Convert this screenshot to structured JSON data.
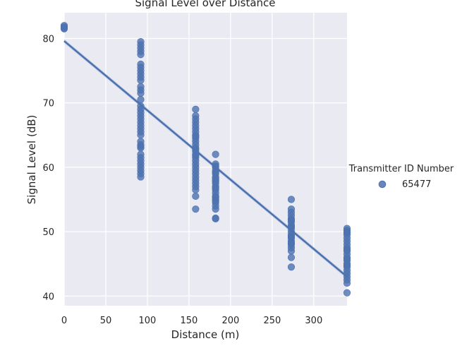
{
  "chart_data": {
    "type": "scatter",
    "title": "Signal Level over Distance",
    "xlabel": "Distance (m)",
    "ylabel": "Signal Level (dB)",
    "xlim": [
      0,
      340
    ],
    "ylim": [
      38.5,
      84
    ],
    "x_ticks": [
      0,
      50,
      100,
      150,
      200,
      250,
      300
    ],
    "y_ticks": [
      40,
      50,
      60,
      70,
      80
    ],
    "grid": true,
    "legend": {
      "title": "Transmitter ID Number",
      "placement": "right",
      "entries": [
        "65477"
      ]
    },
    "series": [
      {
        "name": "65477",
        "color": "#4c72b0",
        "x": [
          0,
          0,
          0,
          0,
          92,
          92,
          92,
          92,
          92,
          92,
          92,
          92,
          92,
          92,
          92,
          92,
          92,
          92,
          92,
          92,
          92,
          92,
          92,
          92,
          92,
          92,
          92,
          92,
          92,
          92,
          92,
          92,
          92,
          92,
          92,
          92,
          92,
          92,
          92,
          92,
          92,
          158,
          158,
          158,
          158,
          158,
          158,
          158,
          158,
          158,
          158,
          158,
          158,
          158,
          158,
          158,
          158,
          158,
          158,
          158,
          158,
          158,
          158,
          158,
          158,
          158,
          158,
          158,
          158,
          158,
          158,
          182,
          182,
          182,
          182,
          182,
          182,
          182,
          182,
          182,
          182,
          182,
          182,
          182,
          182,
          182,
          182,
          182,
          182,
          182,
          182,
          182,
          182,
          182,
          182,
          182,
          273,
          273,
          273,
          273,
          273,
          273,
          273,
          273,
          273,
          273,
          273,
          273,
          273,
          273,
          273,
          273,
          273,
          273,
          273,
          273,
          273,
          340,
          340,
          340,
          340,
          340,
          340,
          340,
          340,
          340,
          340,
          340,
          340,
          340,
          340,
          340,
          340,
          340,
          340,
          340,
          340,
          340,
          340,
          340,
          340
        ],
        "y": [
          82.0,
          81.8,
          81.6,
          81.5,
          79.5,
          79.0,
          78.5,
          78.0,
          77.5,
          76.0,
          75.5,
          75.0,
          74.5,
          74.0,
          73.5,
          72.5,
          72.0,
          71.5,
          70.5,
          69.5,
          69.0,
          68.5,
          68.0,
          67.5,
          67.0,
          66.5,
          66.0,
          65.5,
          65.0,
          64.0,
          63.5,
          63.0,
          62.0,
          61.5,
          61.0,
          60.5,
          60.0,
          59.5,
          59.0,
          58.5,
          63.2,
          69.0,
          68.0,
          67.5,
          67.0,
          66.5,
          66.0,
          65.5,
          65.0,
          64.5,
          64.0,
          63.5,
          63.0,
          62.5,
          62.0,
          61.5,
          61.0,
          60.5,
          60.0,
          59.5,
          59.0,
          58.5,
          58.0,
          57.5,
          57.0,
          56.5,
          55.5,
          53.5,
          61.8,
          62.8,
          64.8,
          62.0,
          60.5,
          60.0,
          59.5,
          59.0,
          58.5,
          58.0,
          57.5,
          57.0,
          56.5,
          56.0,
          55.5,
          55.0,
          54.5,
          54.0,
          53.5,
          52.1,
          52.0,
          58.3,
          56.8,
          55.3,
          57.8,
          59.2,
          54.8,
          60.2,
          55.0,
          53.5,
          53.0,
          52.5,
          52.0,
          51.5,
          51.0,
          50.5,
          50.0,
          49.5,
          49.0,
          48.5,
          48.0,
          47.5,
          47.0,
          46.0,
          44.5,
          50.8,
          49.2,
          48.2,
          51.8,
          50.5,
          50.0,
          49.5,
          49.0,
          48.5,
          48.0,
          47.5,
          47.0,
          46.5,
          46.0,
          45.5,
          45.0,
          44.5,
          44.0,
          43.5,
          43.0,
          42.5,
          42.0,
          40.5,
          50.2,
          49.8,
          47.2,
          45.8,
          44.8
        ]
      }
    ],
    "regression": {
      "x": [
        0,
        340
      ],
      "y": [
        79.6,
        43.0
      ]
    }
  }
}
